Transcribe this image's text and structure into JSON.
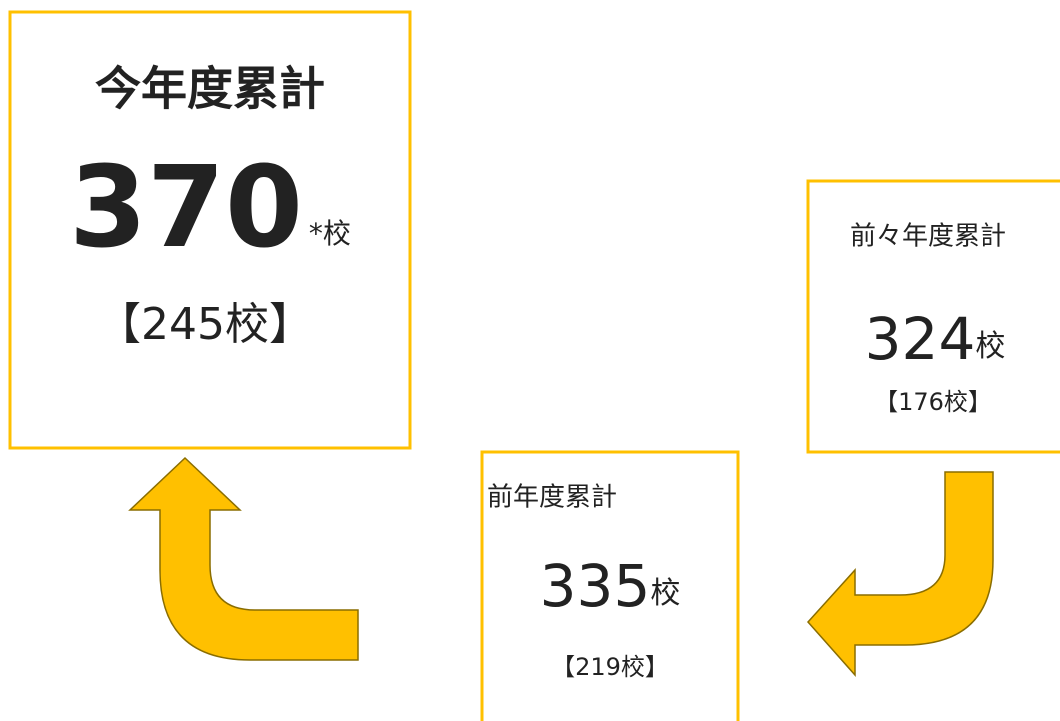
{
  "boxes": [
    {
      "title": "今年度累計",
      "value": 370,
      "unit": "*校",
      "sub": "【245校】"
    },
    {
      "title": "前々年度累計",
      "value": 324,
      "unit": "校",
      "sub": "【176校】"
    },
    {
      "title": "前年度累計",
      "value": 335,
      "unit": "校",
      "sub": "【219校】"
    }
  ]
}
